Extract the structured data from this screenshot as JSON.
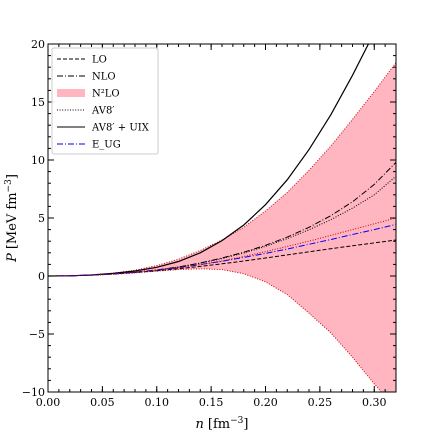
{
  "chart_data": {
    "type": "line",
    "title": "",
    "xlabel": "n [fm^-3]",
    "ylabel": "P [MeV fm^-3]",
    "xlim": [
      0.0,
      0.32
    ],
    "ylim": [
      -10,
      20
    ],
    "x_ticks": [
      "0.00",
      "0.05",
      "0.10",
      "0.15",
      "0.20",
      "0.25",
      "0.30"
    ],
    "y_ticks": [
      "−10",
      "−5",
      "0",
      "5",
      "10",
      "15",
      "20"
    ],
    "grid": false,
    "legend_position": "top-left",
    "legend": [
      {
        "label": "LO",
        "style": "dashed",
        "color": "#000000"
      },
      {
        "label": "NLO",
        "style": "dashdot",
        "color": "#000000"
      },
      {
        "label": "N²LO",
        "style": "band",
        "color": "#ffb6c1"
      },
      {
        "label": "AV8′",
        "style": "dotted",
        "color": "#000000"
      },
      {
        "label": "AV8′ + UIX",
        "style": "solid",
        "color": "#000000"
      },
      {
        "label": "E_UG",
        "style": "dashdot",
        "color": "#0000ff"
      }
    ],
    "x": [
      0.0,
      0.02,
      0.04,
      0.06,
      0.08,
      0.1,
      0.12,
      0.14,
      0.16,
      0.18,
      0.2,
      0.22,
      0.24,
      0.26,
      0.28,
      0.3,
      0.32
    ],
    "series": [
      {
        "name": "LO",
        "style": "dashed",
        "color": "#000000",
        "values": [
          0.0,
          0.02,
          0.08,
          0.17,
          0.3,
          0.45,
          0.63,
          0.83,
          1.05,
          1.29,
          1.55,
          1.82,
          2.09,
          2.35,
          2.6,
          2.85,
          3.1
        ]
      },
      {
        "name": "NLO",
        "style": "dashdot",
        "color": "#000000",
        "values": [
          0.0,
          0.02,
          0.08,
          0.18,
          0.33,
          0.52,
          0.78,
          1.12,
          1.55,
          2.05,
          2.65,
          3.35,
          4.2,
          5.2,
          6.4,
          7.9,
          9.8
        ]
      },
      {
        "name": "AV8′",
        "style": "dotted",
        "color": "#000000",
        "values": [
          0.0,
          0.02,
          0.08,
          0.18,
          0.33,
          0.52,
          0.78,
          1.1,
          1.5,
          1.98,
          2.55,
          3.22,
          3.98,
          4.85,
          5.85,
          7.0,
          8.6
        ]
      },
      {
        "name": "AV8′ + UIX",
        "style": "solid",
        "color": "#000000",
        "values": [
          0.0,
          0.02,
          0.09,
          0.22,
          0.43,
          0.75,
          1.25,
          2.0,
          3.05,
          4.4,
          6.15,
          8.3,
          10.9,
          13.9,
          17.3,
          21.0,
          24.8
        ]
      },
      {
        "name": "E_UG",
        "style": "dashdot",
        "color": "#0000ff",
        "values": [
          0.0,
          0.02,
          0.08,
          0.18,
          0.32,
          0.5,
          0.72,
          0.98,
          1.27,
          1.6,
          1.95,
          2.33,
          2.73,
          3.15,
          3.58,
          4.0,
          4.45
        ]
      },
      {
        "name": "N²LO center",
        "style": "dotted",
        "color": "#cc0000",
        "values": [
          0.0,
          0.02,
          0.08,
          0.18,
          0.32,
          0.5,
          0.72,
          0.98,
          1.3,
          1.68,
          2.1,
          2.55,
          3.0,
          3.5,
          4.0,
          4.5,
          5.0
        ]
      }
    ],
    "band": {
      "name": "N²LO",
      "color": "#ffb6c1",
      "edge_color": "#cc0000",
      "upper": [
        0.0,
        0.02,
        0.1,
        0.25,
        0.5,
        0.9,
        1.45,
        2.2,
        3.1,
        4.2,
        5.6,
        7.2,
        9.1,
        11.2,
        13.5,
        15.9,
        18.4
      ],
      "lower": [
        0.0,
        0.02,
        0.07,
        0.15,
        0.27,
        0.42,
        0.55,
        0.62,
        0.55,
        0.2,
        -0.5,
        -1.6,
        -3.2,
        -4.9,
        -7.0,
        -9.3,
        -11.5
      ]
    }
  }
}
